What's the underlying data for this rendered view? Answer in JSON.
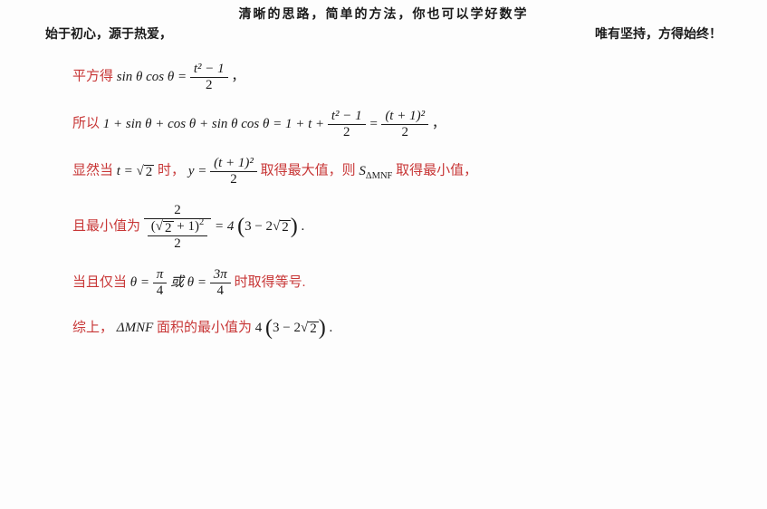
{
  "colors": {
    "red": "#c83737",
    "black": "#1a1a1a",
    "background": "#fdfdfd"
  },
  "typography": {
    "body_font": "SimSun / Songti SC, serif",
    "math_font": "Cambria Math / Times New Roman, italic",
    "body_size_pt": 11,
    "header_size_pt": 11,
    "header_bold": true
  },
  "header": {
    "top": "清晰的思路，简单的方法，你也可以学好数学",
    "left": "始于初心，源于热爱，",
    "right": "唯有坚持，方得始终！"
  },
  "lines": {
    "l1": {
      "pre": "平方得",
      "lhs": "sin θ cos θ =",
      "frac_num": "t² − 1",
      "frac_den": "2",
      "tail": "，"
    },
    "l2": {
      "pre": "所以",
      "mid1": "1 + sin θ + cos θ + sin θ cos θ = 1 + t +",
      "frac1_num": "t² − 1",
      "frac1_den": "2",
      "eq": " = ",
      "frac2_num": "(t + 1)²",
      "frac2_den": "2",
      "tail": "，"
    },
    "l3": {
      "pre1": "显然当",
      "t_eq": "t = ",
      "t_val": "2",
      "pre2": " 时，",
      "y_eq": "y = ",
      "frac_num": "(t + 1)²",
      "frac_den": "2",
      "mid_red": " 取得最大值，则 ",
      "S": "S",
      "S_sub": "ΔMNF",
      "tail_red": " 取得最小值，"
    },
    "l4": {
      "pre": "且最小值为",
      "outer_num": "2",
      "inner_base_sqrt": "2",
      "inner_plus1": " + 1",
      "inner_sq": "2",
      "outer_den_den": "2",
      "eq": " = 4",
      "paren_inner_a": "3 − 2",
      "paren_inner_sqrt": "2",
      "tail": "."
    },
    "l5": {
      "pre": "当且仅当",
      "th1": "θ = ",
      "f1_num": "π",
      "f1_den": "4",
      "or": " 或 ",
      "th2": "θ = ",
      "f2_num": "3π",
      "f2_den": "4",
      "tail": " 时取得等号."
    },
    "l6": {
      "pre": "综上，",
      "tri": "ΔMNF",
      "mid": " 面积的最小值为",
      "val_a": "4",
      "paren_a": "3 − 2",
      "paren_sqrt": "2",
      "tail": "."
    }
  }
}
